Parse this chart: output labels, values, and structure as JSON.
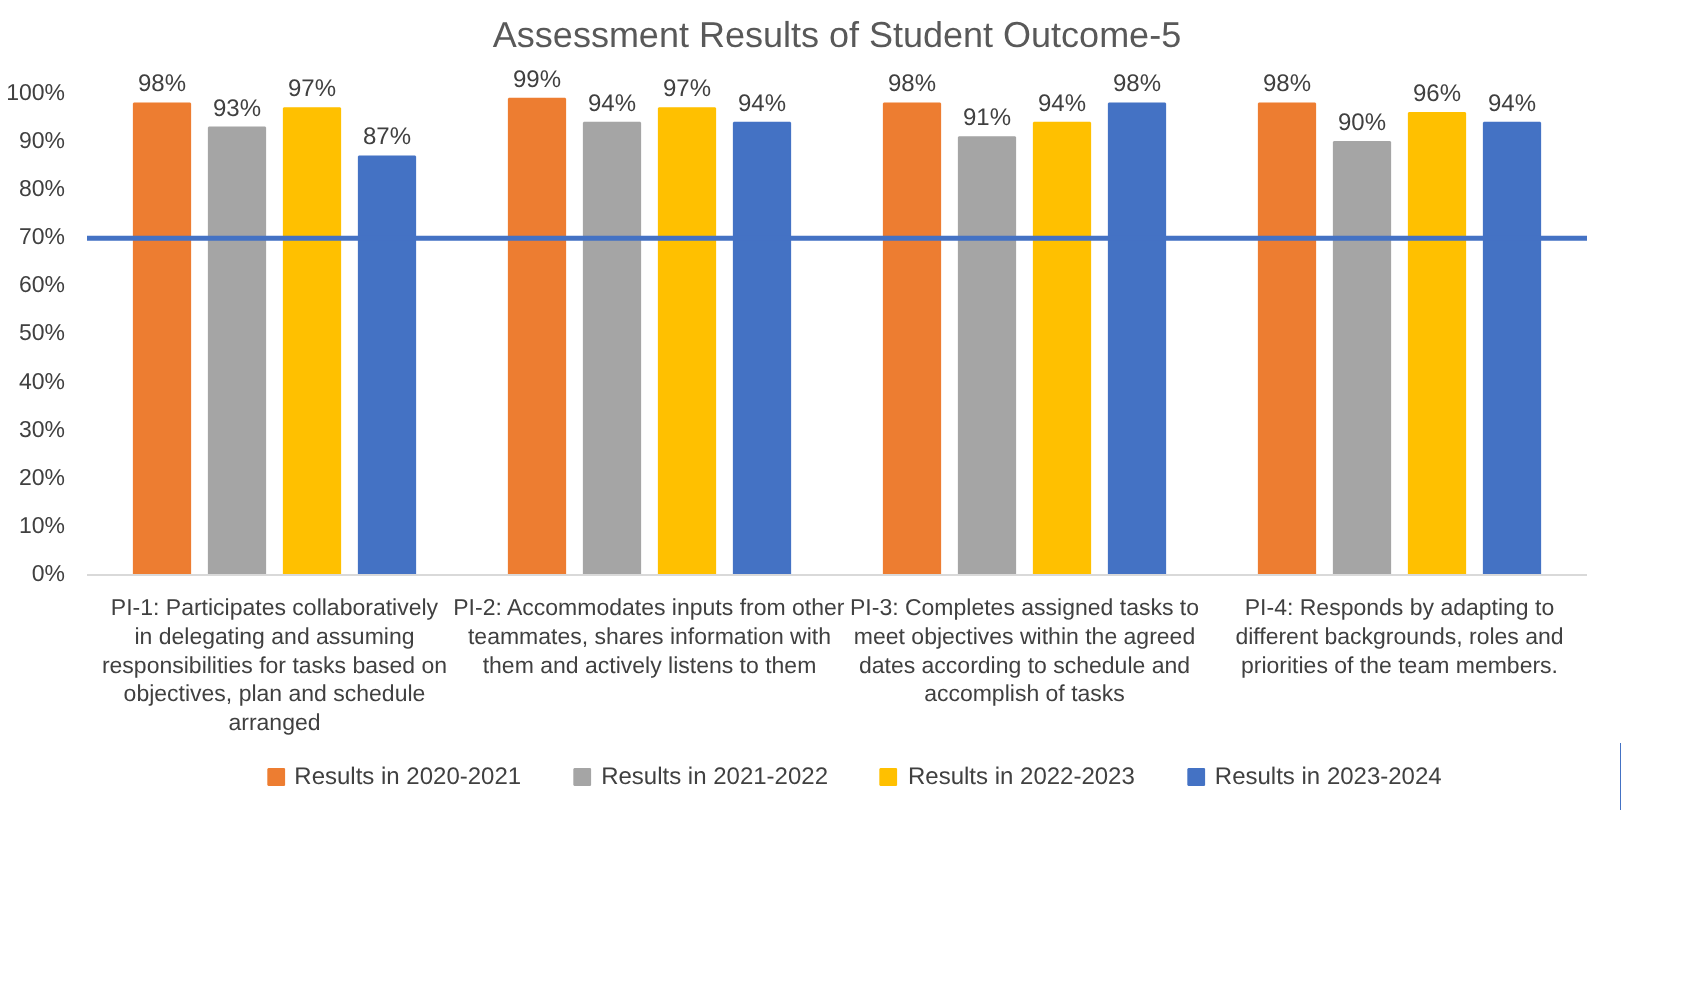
{
  "chart_data": {
    "type": "bar",
    "title": "Assessment Results of Student Outcome-5",
    "categories": [
      "PI-1: Participates collaboratively in delegating and assuming responsibilities for tasks based on objectives, plan and schedule arranged",
      "PI-2: Accommodates inputs from other teammates, shares information with them and actively listens to them",
      "PI-3: Completes assigned tasks to meet objectives within the agreed dates according to schedule and accomplish of tasks",
      "PI-4: Responds by adapting to different backgrounds, roles and priorities of the team members."
    ],
    "series": [
      {
        "name": "Results in 2020-2021",
        "color": "#ed7d31",
        "values": [
          98,
          99,
          98,
          98
        ],
        "value_labels": [
          "98%",
          "99%",
          "98%",
          "98%"
        ]
      },
      {
        "name": "Results in 2021-2022",
        "color": "#a5a5a5",
        "values": [
          93,
          94,
          91,
          90
        ],
        "value_labels": [
          "93%",
          "94%",
          "91%",
          "90%"
        ]
      },
      {
        "name": "Results in 2022-2023",
        "color": "#ffc000",
        "values": [
          97,
          97,
          94,
          96
        ],
        "value_labels": [
          "97%",
          "97%",
          "94%",
          "96%"
        ]
      },
      {
        "name": "Results in 2023-2024",
        "color": "#4472c4",
        "values": [
          87,
          94,
          98,
          94
        ],
        "value_labels": [
          "87%",
          "94%",
          "98%",
          "94%"
        ]
      }
    ],
    "ylim": [
      0,
      100
    ],
    "yticks": [
      {
        "value": 0,
        "label": "0%"
      },
      {
        "value": 10,
        "label": "10%"
      },
      {
        "value": 20,
        "label": "20%"
      },
      {
        "value": 30,
        "label": "30%"
      },
      {
        "value": 40,
        "label": "40%"
      },
      {
        "value": 50,
        "label": "50%"
      },
      {
        "value": 60,
        "label": "60%"
      },
      {
        "value": 70,
        "label": "70%"
      },
      {
        "value": 80,
        "label": "80%"
      },
      {
        "value": 90,
        "label": "90%"
      },
      {
        "value": 100,
        "label": "100%"
      }
    ],
    "ref_lines": [
      {
        "axis": "y",
        "value": 70,
        "color": "#4472c4"
      }
    ],
    "grid": false,
    "legend": "bottom"
  }
}
